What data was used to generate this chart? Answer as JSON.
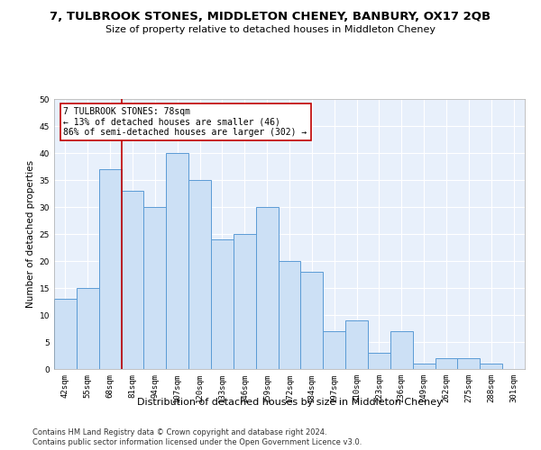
{
  "title": "7, TULBROOK STONES, MIDDLETON CHENEY, BANBURY, OX17 2QB",
  "subtitle": "Size of property relative to detached houses in Middleton Cheney",
  "xlabel": "Distribution of detached houses by size in Middleton Cheney",
  "ylabel": "Number of detached properties",
  "categories": [
    "42sqm",
    "55sqm",
    "68sqm",
    "81sqm",
    "94sqm",
    "107sqm",
    "120sqm",
    "133sqm",
    "146sqm",
    "159sqm",
    "172sqm",
    "184sqm",
    "197sqm",
    "210sqm",
    "223sqm",
    "236sqm",
    "249sqm",
    "262sqm",
    "275sqm",
    "288sqm",
    "301sqm"
  ],
  "values": [
    13,
    15,
    37,
    33,
    30,
    40,
    35,
    24,
    25,
    30,
    20,
    18,
    7,
    9,
    3,
    7,
    1,
    2,
    2,
    1,
    0
  ],
  "bar_color": "#cce0f5",
  "bar_edge_color": "#5b9bd5",
  "vline_x": 2.5,
  "vline_color": "#c00000",
  "annotation_line1": "7 TULBROOK STONES: 78sqm",
  "annotation_line2": "← 13% of detached houses are smaller (46)",
  "annotation_line3": "86% of semi-detached houses are larger (302) →",
  "annotation_box_color": "#c00000",
  "ylim": [
    0,
    50
  ],
  "yticks": [
    0,
    5,
    10,
    15,
    20,
    25,
    30,
    35,
    40,
    45,
    50
  ],
  "footer1": "Contains HM Land Registry data © Crown copyright and database right 2024.",
  "footer2": "Contains public sector information licensed under the Open Government Licence v3.0.",
  "bg_color": "#e8f0fb",
  "title_fontsize": 9.5,
  "subtitle_fontsize": 8,
  "ylabel_fontsize": 7.5,
  "xlabel_fontsize": 8,
  "tick_fontsize": 6.5,
  "annotation_fontsize": 7,
  "footer_fontsize": 6
}
